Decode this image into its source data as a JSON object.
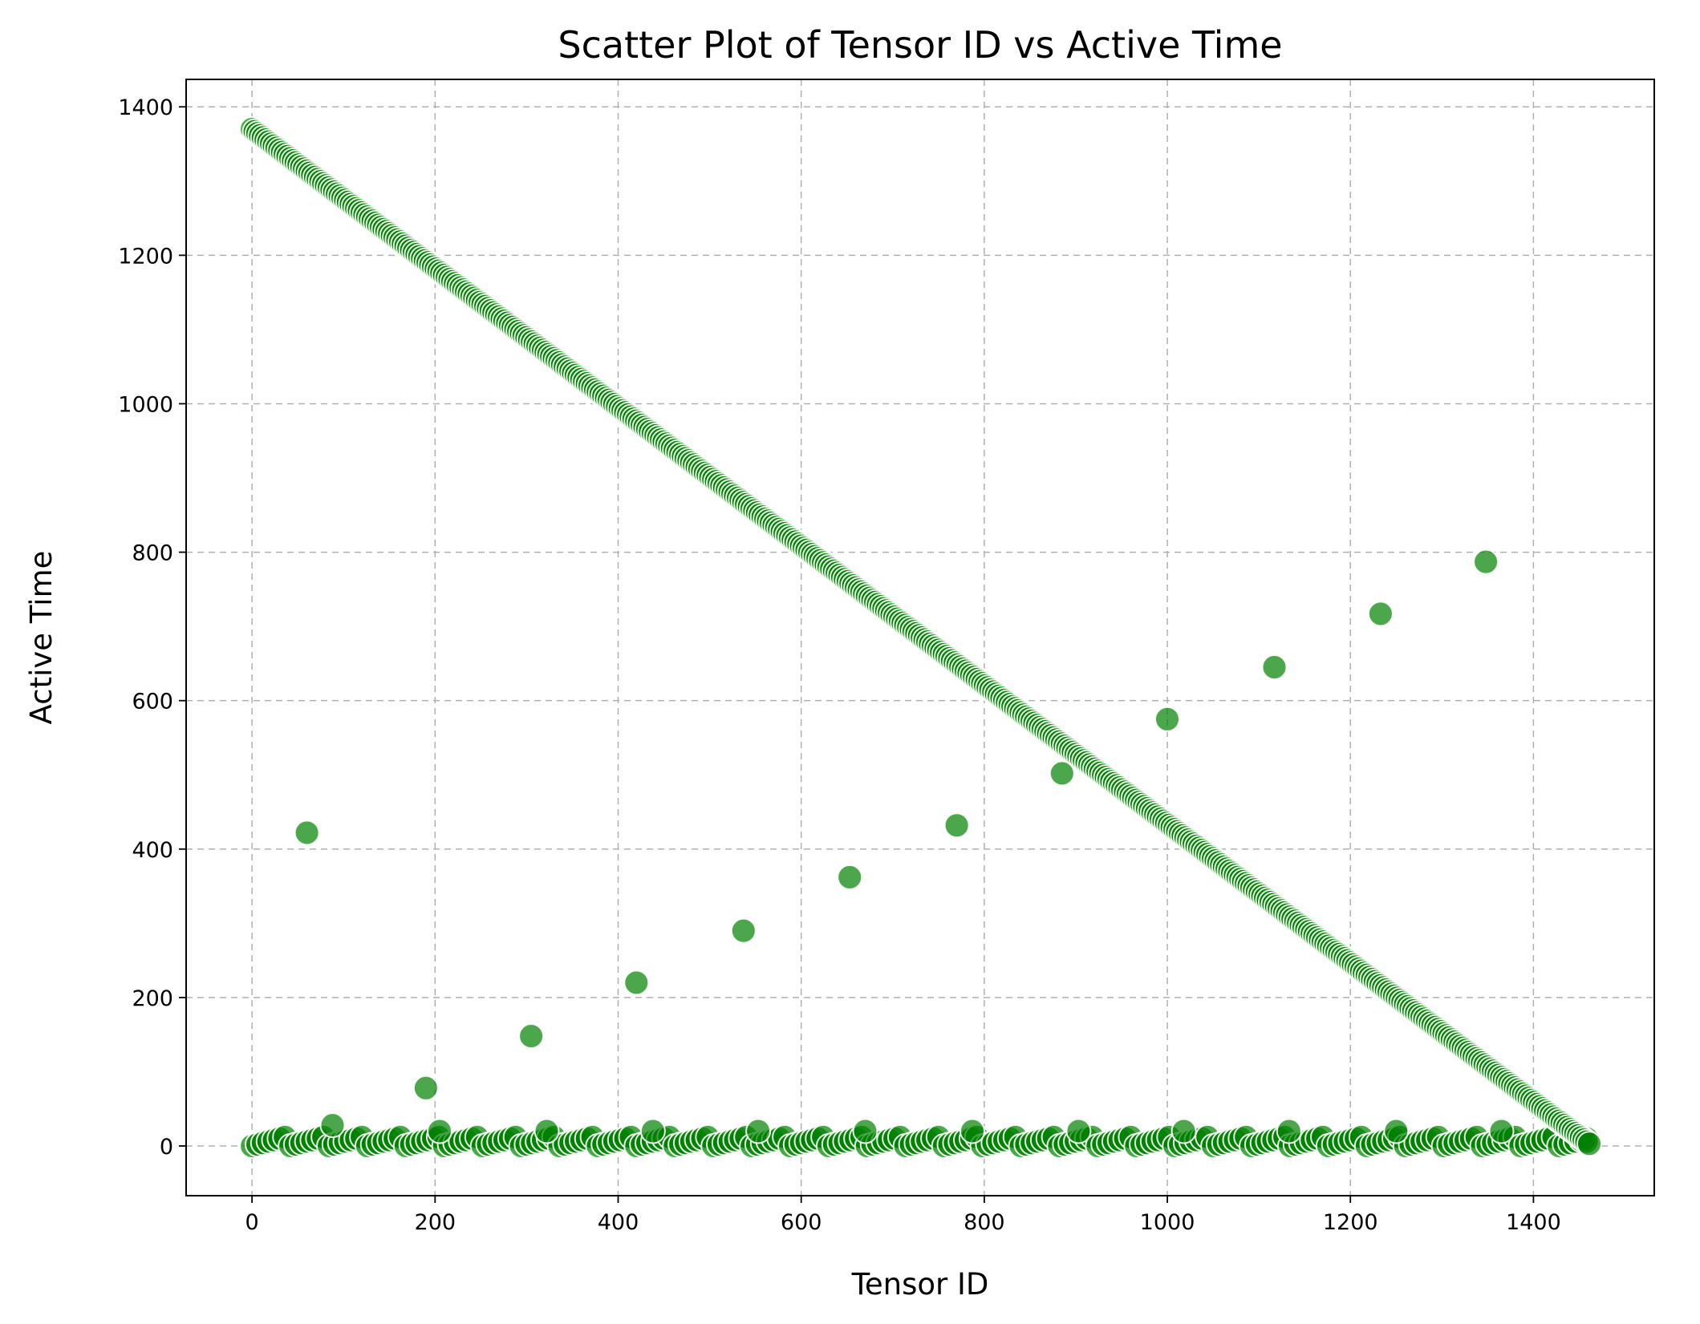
{
  "chart_data": {
    "type": "scatter",
    "title": "Scatter Plot of Tensor ID vs Active Time",
    "xlabel": "Tensor ID",
    "ylabel": "Active Time",
    "xlim": [
      -72,
      1532
    ],
    "ylim": [
      -67,
      1437
    ],
    "x_ticks": [
      0,
      200,
      400,
      600,
      800,
      1000,
      1200,
      1400
    ],
    "y_ticks": [
      0,
      200,
      400,
      600,
      800,
      1000,
      1200,
      1400
    ],
    "grid": true,
    "legend": "none",
    "marker_color": "#008000",
    "marker_edge_color": "#ffffff",
    "marker_alpha": 0.7,
    "series": [
      {
        "points_note": "",
        "diagonal": {
          "x_start": 0,
          "x_end": 1462,
          "x_step": 3,
          "y_at_start": 1370,
          "y_at_end": 2
        },
        "baseline": {
          "x_start": 0,
          "x_end": 1462,
          "x_step": 6,
          "y_values": [
            0,
            2,
            4,
            6,
            8,
            10,
            12
          ]
        },
        "outliers": [
          [
            60,
            422
          ],
          [
            88,
            28
          ],
          [
            190,
            78
          ],
          [
            205,
            20
          ],
          [
            305,
            148
          ],
          [
            322,
            20
          ],
          [
            420,
            220
          ],
          [
            438,
            20
          ],
          [
            537,
            290
          ],
          [
            553,
            20
          ],
          [
            653,
            362
          ],
          [
            670,
            20
          ],
          [
            770,
            432
          ],
          [
            787,
            20
          ],
          [
            885,
            502
          ],
          [
            903,
            20
          ],
          [
            1000,
            575
          ],
          [
            1018,
            20
          ],
          [
            1117,
            645
          ],
          [
            1133,
            20
          ],
          [
            1233,
            717
          ],
          [
            1250,
            20
          ],
          [
            1348,
            787
          ],
          [
            1365,
            20
          ]
        ]
      }
    ]
  }
}
